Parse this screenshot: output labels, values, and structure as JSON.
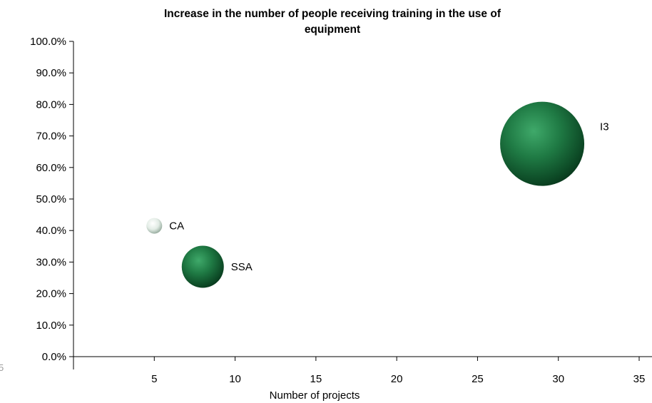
{
  "chart_data": {
    "type": "bubble",
    "title_lines": [
      "Increase in the number of people receiving training in the use of",
      "equipment"
    ],
    "xlabel": "Number of projects",
    "ylabel": "",
    "xlim": [
      0,
      35
    ],
    "ylim": [
      0,
      100
    ],
    "x_ticks": [
      "5",
      "10",
      "15",
      "20",
      "25",
      "30",
      "35"
    ],
    "y_ticks": [
      "0.0%",
      "10.0%",
      "20.0%",
      "30.0%",
      "40.0%",
      "50.0%",
      "60.0%",
      "70.0%",
      "80.0%",
      "90.0%",
      "100.0%"
    ],
    "grid": false,
    "legend": "none",
    "points": [
      {
        "label": "CA",
        "x": 5,
        "y": 41.5,
        "size": 1,
        "color": "#d8e6dc"
      },
      {
        "label": "SSA",
        "x": 8,
        "y": 28.5,
        "size": 8,
        "color": "#1f7a44"
      },
      {
        "label": "I3",
        "x": 29,
        "y": 67.5,
        "size": 32,
        "color": "#1a6a3a"
      }
    ]
  },
  "stray_text": "5"
}
